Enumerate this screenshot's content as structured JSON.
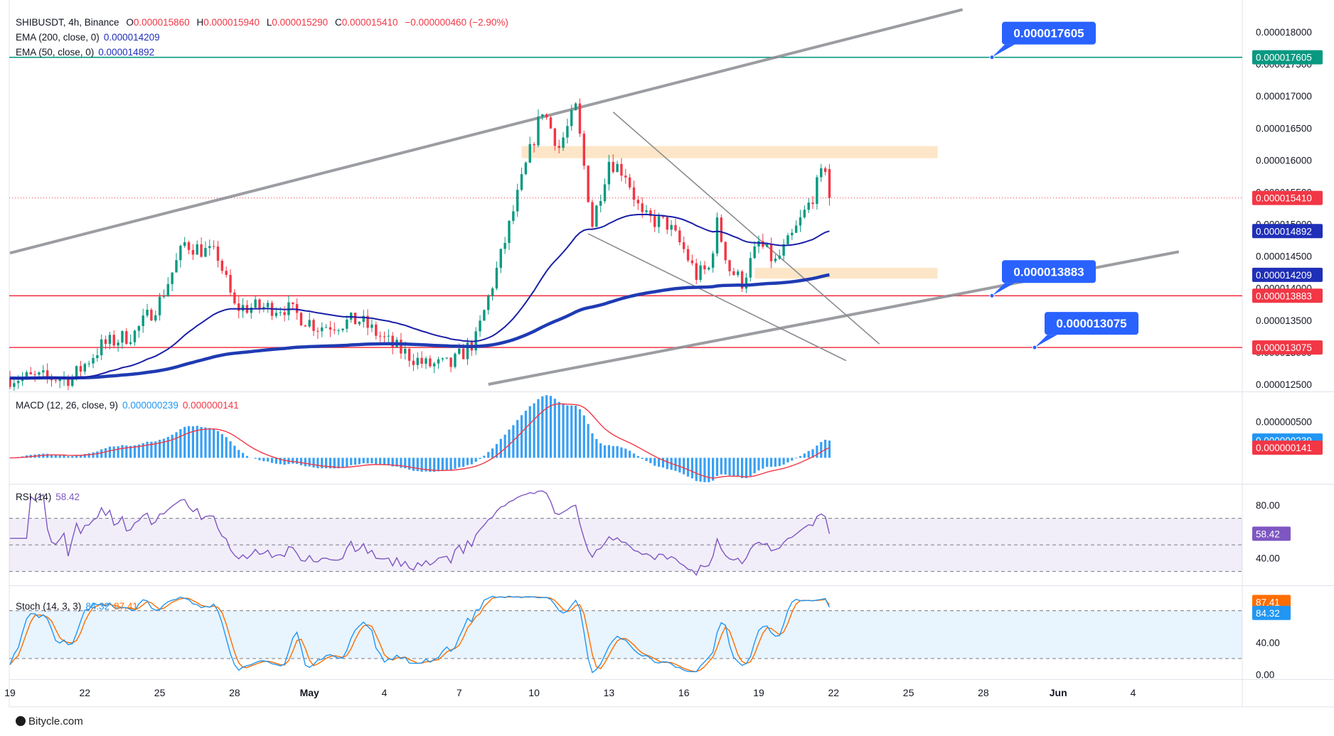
{
  "header": {
    "symbol": "SHIBUSDT, 4h, Binance",
    "open_label": "O",
    "open": "0.000015860",
    "high_label": "H",
    "high": "0.000015940",
    "low_label": "L",
    "low": "0.000015290",
    "close_label": "C",
    "close": "0.000015410",
    "change": "−0.000000460 (−2.90%)",
    "ema200_label": "EMA (200, close, 0)",
    "ema200_value": "0.000014209",
    "ema50_label": "EMA (50, close, 0)",
    "ema50_value": "0.000014892"
  },
  "macd_header": {
    "label": "MACD (12, 26, close, 9)",
    "macd": "0.000000239",
    "signal": "0.000000141"
  },
  "rsi_header": {
    "label": "RSI (14)",
    "value": "58.42"
  },
  "stoch_header": {
    "label": "Stoch (14, 3, 3)",
    "k": "84.32",
    "d": "87.41"
  },
  "callouts": [
    {
      "text": "0.000017605",
      "price": 1.7605e-05
    },
    {
      "text": "0.000013883",
      "price": 1.3883e-05
    },
    {
      "text": "0.000013075",
      "price": 1.3075e-05
    }
  ],
  "price_badges": [
    {
      "text": "0.000017605",
      "price": 1.7605e-05,
      "color": "#089981"
    },
    {
      "text": "0.000015410",
      "price": 1.541e-05,
      "color": "#f23645"
    },
    {
      "text": "0.000014892",
      "price": 1.4892e-05,
      "color": "#1f2fb8"
    },
    {
      "text": "0.000014209",
      "price": 1.4209e-05,
      "color": "#1f2fb8"
    },
    {
      "text": "0.000013883",
      "price": 1.3883e-05,
      "color": "#f23645"
    },
    {
      "text": "0.000013075",
      "price": 1.3075e-05,
      "color": "#f23645"
    }
  ],
  "macd_badges": [
    {
      "text": "0.000000239",
      "value": 2.39e-07,
      "color": "#2196f3"
    },
    {
      "text": "0.000000141",
      "value": 1.41e-07,
      "color": "#f23645"
    }
  ],
  "rsi_badge": {
    "text": "58.42",
    "value": 58.42,
    "color": "#7e57c2"
  },
  "stoch_badges": [
    {
      "text": "87.41",
      "value": 87.41,
      "color": "#ff6d00"
    },
    {
      "text": "84.32",
      "value": 84.32,
      "color": "#2196f3"
    }
  ],
  "footer": {
    "brand": "Bitycle.com"
  },
  "colors": {
    "up": "#089981",
    "down": "#f23645",
    "ema200": "#1f3bb3",
    "ema50": "#1a1fa8",
    "macd": "#2196f3",
    "signal": "#f23645",
    "rsi": "#7e57c2",
    "stoch_k": "#2196f3",
    "stoch_d": "#ff6d00",
    "zone": "#fde2bd"
  },
  "chart_data": {
    "type": "candlestick",
    "title": "SHIBUSDT, 4h, Binance",
    "x_ticks": [
      "19",
      "22",
      "25",
      "28",
      "May",
      "4",
      "7",
      "10",
      "13",
      "16",
      "19",
      "22",
      "25",
      "28",
      "Jun",
      "4"
    ],
    "x_tick_index": [
      0,
      18,
      36,
      54,
      72,
      90,
      108,
      126,
      144,
      162,
      180,
      198,
      216,
      234,
      252,
      270
    ],
    "price_axis": {
      "ticks": [
        "0.000018000",
        "0.000017500",
        "0.000017000",
        "0.000016500",
        "0.000016000",
        "0.000015500",
        "0.000015000",
        "0.000014500",
        "0.000014000",
        "0.000013500",
        "0.000013000",
        "0.000012500"
      ],
      "ylim": [
        1.24e-05,
        1.83e-05
      ]
    },
    "macd_axis": {
      "ticks": [
        "0.000000500"
      ]
    },
    "rsi_axis": {
      "ticks": [
        "80.00",
        "40.00"
      ],
      "bands": [
        70,
        50,
        30
      ]
    },
    "stoch_axis": {
      "ticks": [
        "40.00",
        "0.00"
      ],
      "bands": [
        80,
        20
      ]
    },
    "horizontal_levels": [
      {
        "price": 1.7605e-05,
        "color": "#089981"
      },
      {
        "price": 1.3883e-05,
        "color": "#f23645"
      },
      {
        "price": 1.3075e-05,
        "color": "#f23645"
      }
    ],
    "zones": [
      {
        "from_index": 123,
        "to_index": 223,
        "low": 1.603e-05,
        "high": 1.622e-05
      },
      {
        "from_index": 179,
        "to_index": 223,
        "low": 1.415e-05,
        "high": 1.432e-05
      }
    ],
    "channel": {
      "upper": [
        [
          0,
          1.455e-05
        ],
        [
          229,
          1.835e-05
        ]
      ],
      "lower": [
        [
          115,
          1.25e-05
        ],
        [
          281,
          1.457e-05
        ]
      ]
    },
    "wedge": {
      "upper": [
        [
          145,
          1.675e-05
        ],
        [
          209,
          1.313e-05
        ]
      ],
      "lower": [
        [
          139,
          1.485e-05
        ],
        [
          201,
          1.287e-05
        ]
      ]
    },
    "price_anchors": [
      [
        0,
        1.26e-05
      ],
      [
        15,
        1.26e-05
      ],
      [
        22,
        1.31e-05
      ],
      [
        30,
        1.33e-05
      ],
      [
        36,
        1.38e-05
      ],
      [
        42,
        1.47e-05
      ],
      [
        50,
        1.45e-05
      ],
      [
        54,
        1.37e-05
      ],
      [
        60,
        1.37e-05
      ],
      [
        66,
        1.37e-05
      ],
      [
        74,
        1.34e-05
      ],
      [
        84,
        1.35e-05
      ],
      [
        92,
        1.31e-05
      ],
      [
        100,
        1.28e-05
      ],
      [
        106,
        1.28e-05
      ],
      [
        112,
        1.32e-05
      ],
      [
        118,
        1.45e-05
      ],
      [
        124,
        1.59e-05
      ],
      [
        128,
        1.68e-05
      ],
      [
        132,
        1.62e-05
      ],
      [
        136,
        1.68e-05
      ],
      [
        138,
        1.59e-05
      ],
      [
        140,
        1.5e-05
      ],
      [
        144,
        1.6e-05
      ],
      [
        148,
        1.58e-05
      ],
      [
        152,
        1.51e-05
      ],
      [
        158,
        1.5e-05
      ],
      [
        162,
        1.46e-05
      ],
      [
        165,
        1.42e-05
      ],
      [
        168,
        1.43e-05
      ],
      [
        170,
        1.5e-05
      ],
      [
        173,
        1.43e-05
      ],
      [
        176,
        1.41e-05
      ],
      [
        180,
        1.47e-05
      ],
      [
        184,
        1.44e-05
      ],
      [
        188,
        1.48e-05
      ],
      [
        192,
        1.53e-05
      ],
      [
        196,
        1.59e-05
      ],
      [
        197,
        1.54e-05
      ]
    ],
    "last_close": 1.541e-05,
    "ema200_last": 1.4209e-05,
    "ema50_last": 1.4892e-05,
    "macd_last": 2.39e-07,
    "signal_last": 1.41e-07,
    "rsi_last": 58.42,
    "stoch_k_last": 84.32,
    "stoch_d_last": 87.41
  }
}
